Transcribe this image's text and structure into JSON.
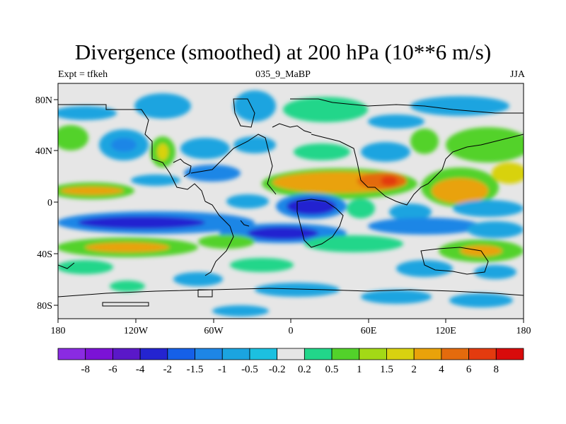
{
  "title": "Divergence (smoothed) at 200 hPa (10**6 m/s)",
  "subtitle_left": "Expt = tfkeh",
  "subtitle_center": "035_9_MaBP",
  "subtitle_right": "JJA",
  "lat_labels": [
    "80N",
    "40N",
    "0",
    "40S",
    "80S"
  ],
  "lon_labels": [
    "180",
    "120W",
    "60W",
    "0",
    "60E",
    "120E",
    "180"
  ],
  "colorbar": {
    "colors": [
      "#8a2be2",
      "#7b12d6",
      "#5a18c8",
      "#2424d0",
      "#1560e8",
      "#1e86e6",
      "#1ba4e0",
      "#1cc0e0",
      "#e6e6e6",
      "#22d68a",
      "#52d22a",
      "#a3d916",
      "#d8d210",
      "#e9a20a",
      "#e46b0d",
      "#e33b0f",
      "#d80b0b"
    ],
    "labels": [
      "-8",
      "-6",
      "-4",
      "-2",
      "-1.5",
      "-1",
      "-0.5",
      "-0.2",
      "0.2",
      "0.5",
      "1",
      "1.5",
      "2",
      "4",
      "6",
      "8"
    ]
  }
}
